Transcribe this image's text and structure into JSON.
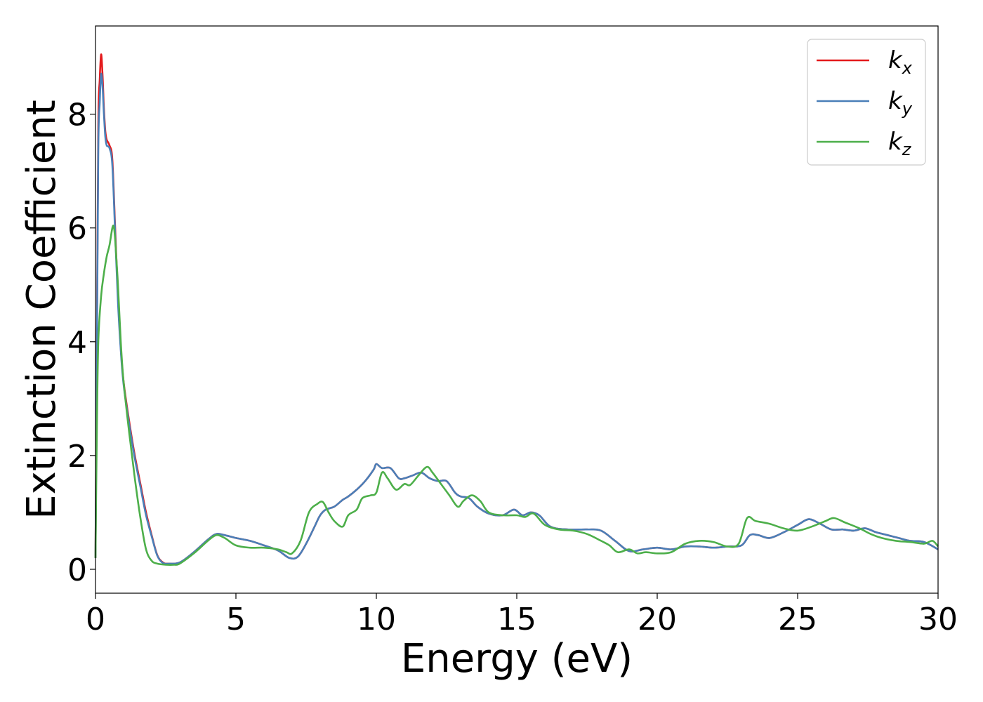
{
  "chart_data": {
    "type": "line",
    "xlabel": "Energy (eV)",
    "ylabel": "Extinction Coefficient",
    "xlim": [
      0,
      30
    ],
    "ylim": [
      -0.42,
      9.55
    ],
    "xticks": [
      0,
      5,
      10,
      15,
      20,
      25,
      30
    ],
    "yticks": [
      0,
      2,
      4,
      6,
      8
    ],
    "grid": false,
    "legend_position": "top-right",
    "series": [
      {
        "name": "k_x",
        "label_main": "k",
        "label_sub": "x",
        "color": "#e41a1c",
        "x": [
          0,
          0.05,
          0.1,
          0.15,
          0.2,
          0.25,
          0.3,
          0.35,
          0.4,
          0.5,
          0.6,
          0.7,
          0.8,
          0.9,
          1.0,
          1.2,
          1.4,
          1.6,
          1.8,
          2.0,
          2.2,
          2.4,
          2.6,
          3.0,
          3.5,
          4.0,
          4.3,
          4.6,
          5.0,
          5.5,
          6.0,
          6.5,
          6.9,
          7.2,
          7.5,
          7.8,
          8.0,
          8.2,
          8.5,
          8.8,
          9.0,
          9.3,
          9.6,
          9.9,
          10.0,
          10.2,
          10.5,
          10.8,
          11.0,
          11.3,
          11.6,
          11.9,
          12.2,
          12.5,
          12.8,
          13.0,
          13.3,
          13.6,
          14.0,
          14.5,
          14.9,
          15.2,
          15.5,
          15.8,
          16.2,
          16.8,
          17.5,
          18.0,
          18.5,
          19.0,
          19.5,
          20.0,
          20.5,
          21.0,
          21.5,
          22.0,
          22.5,
          23.0,
          23.3,
          23.6,
          24.0,
          24.5,
          25.0,
          25.4,
          25.8,
          26.2,
          26.6,
          27.0,
          27.4,
          27.8,
          28.2,
          28.6,
          29.0,
          29.5,
          30.0
        ],
        "y": [
          0.2,
          4.0,
          7.8,
          8.6,
          9.05,
          8.7,
          8.1,
          7.7,
          7.55,
          7.45,
          7.2,
          6.0,
          4.8,
          3.9,
          3.3,
          2.6,
          2.0,
          1.5,
          1.0,
          0.6,
          0.25,
          0.12,
          0.1,
          0.12,
          0.3,
          0.52,
          0.62,
          0.6,
          0.55,
          0.5,
          0.42,
          0.33,
          0.2,
          0.22,
          0.45,
          0.75,
          0.95,
          1.05,
          1.1,
          1.22,
          1.28,
          1.4,
          1.55,
          1.75,
          1.85,
          1.78,
          1.78,
          1.6,
          1.6,
          1.65,
          1.7,
          1.6,
          1.55,
          1.55,
          1.35,
          1.28,
          1.25,
          1.1,
          0.98,
          0.95,
          1.05,
          0.95,
          1.0,
          0.95,
          0.75,
          0.7,
          0.7,
          0.68,
          0.5,
          0.32,
          0.35,
          0.38,
          0.35,
          0.4,
          0.4,
          0.38,
          0.4,
          0.42,
          0.6,
          0.6,
          0.55,
          0.65,
          0.78,
          0.88,
          0.8,
          0.7,
          0.7,
          0.68,
          0.72,
          0.65,
          0.6,
          0.55,
          0.5,
          0.48,
          0.35
        ]
      },
      {
        "name": "k_y",
        "label_main": "k",
        "label_sub": "y",
        "color": "#4a7fb8",
        "x": [
          0,
          0.05,
          0.1,
          0.15,
          0.2,
          0.25,
          0.3,
          0.35,
          0.4,
          0.5,
          0.6,
          0.7,
          0.8,
          0.9,
          1.0,
          1.2,
          1.4,
          1.6,
          1.8,
          2.0,
          2.2,
          2.4,
          2.6,
          3.0,
          3.5,
          4.0,
          4.3,
          4.6,
          5.0,
          5.5,
          6.0,
          6.5,
          6.9,
          7.2,
          7.5,
          7.8,
          8.0,
          8.2,
          8.5,
          8.8,
          9.0,
          9.3,
          9.6,
          9.9,
          10.0,
          10.2,
          10.5,
          10.8,
          11.0,
          11.3,
          11.6,
          11.9,
          12.2,
          12.5,
          12.8,
          13.0,
          13.3,
          13.6,
          14.0,
          14.5,
          14.9,
          15.2,
          15.5,
          15.8,
          16.2,
          16.8,
          17.5,
          18.0,
          18.5,
          19.0,
          19.5,
          20.0,
          20.5,
          21.0,
          21.5,
          22.0,
          22.5,
          23.0,
          23.3,
          23.6,
          24.0,
          24.5,
          25.0,
          25.4,
          25.8,
          26.2,
          26.6,
          27.0,
          27.4,
          27.8,
          28.2,
          28.6,
          29.0,
          29.5,
          30.0
        ],
        "y": [
          0.2,
          3.8,
          7.4,
          8.2,
          8.7,
          8.5,
          8.0,
          7.6,
          7.45,
          7.4,
          7.1,
          5.9,
          4.7,
          3.85,
          3.25,
          2.55,
          1.95,
          1.45,
          0.95,
          0.58,
          0.24,
          0.11,
          0.1,
          0.12,
          0.3,
          0.52,
          0.62,
          0.6,
          0.55,
          0.5,
          0.42,
          0.33,
          0.2,
          0.22,
          0.45,
          0.75,
          0.95,
          1.05,
          1.1,
          1.22,
          1.28,
          1.4,
          1.55,
          1.75,
          1.85,
          1.78,
          1.78,
          1.6,
          1.6,
          1.65,
          1.7,
          1.6,
          1.55,
          1.55,
          1.35,
          1.28,
          1.25,
          1.1,
          0.98,
          0.95,
          1.05,
          0.95,
          1.0,
          0.95,
          0.75,
          0.7,
          0.7,
          0.68,
          0.5,
          0.32,
          0.35,
          0.38,
          0.35,
          0.4,
          0.4,
          0.38,
          0.4,
          0.42,
          0.6,
          0.6,
          0.55,
          0.65,
          0.78,
          0.88,
          0.8,
          0.7,
          0.7,
          0.68,
          0.72,
          0.65,
          0.6,
          0.55,
          0.5,
          0.48,
          0.35
        ]
      },
      {
        "name": "k_z",
        "label_main": "k",
        "label_sub": "z",
        "color": "#4daf4a",
        "x": [
          0,
          0.05,
          0.1,
          0.2,
          0.3,
          0.4,
          0.5,
          0.6,
          0.65,
          0.7,
          0.8,
          0.9,
          1.0,
          1.2,
          1.4,
          1.6,
          1.8,
          2.0,
          2.2,
          2.5,
          2.8,
          3.0,
          3.5,
          4.0,
          4.3,
          4.6,
          5.0,
          5.5,
          6.0,
          6.5,
          6.8,
          7.0,
          7.3,
          7.6,
          7.9,
          8.1,
          8.3,
          8.5,
          8.8,
          9.0,
          9.3,
          9.5,
          9.8,
          10.0,
          10.2,
          10.4,
          10.7,
          11.0,
          11.2,
          11.5,
          11.8,
          12.0,
          12.3,
          12.6,
          12.9,
          13.1,
          13.4,
          13.7,
          14.0,
          14.5,
          15.0,
          15.3,
          15.6,
          16.0,
          16.5,
          17.0,
          17.5,
          18.0,
          18.3,
          18.6,
          19.0,
          19.3,
          19.6,
          20.0,
          20.5,
          21.0,
          21.5,
          22.0,
          22.5,
          22.9,
          23.2,
          23.5,
          24.0,
          24.5,
          25.0,
          25.5,
          26.0,
          26.3,
          26.7,
          27.2,
          27.6,
          28.0,
          28.5,
          29.0,
          29.5,
          29.8,
          30.0
        ],
        "y": [
          0.2,
          2.5,
          4.0,
          4.8,
          5.2,
          5.5,
          5.7,
          6.0,
          6.02,
          5.8,
          5.0,
          4.0,
          3.3,
          2.4,
          1.6,
          0.9,
          0.35,
          0.15,
          0.1,
          0.08,
          0.08,
          0.1,
          0.28,
          0.5,
          0.6,
          0.55,
          0.42,
          0.38,
          0.38,
          0.35,
          0.3,
          0.28,
          0.5,
          1.0,
          1.15,
          1.18,
          1.0,
          0.85,
          0.75,
          0.95,
          1.05,
          1.25,
          1.3,
          1.35,
          1.7,
          1.6,
          1.4,
          1.5,
          1.48,
          1.65,
          1.8,
          1.7,
          1.5,
          1.3,
          1.1,
          1.2,
          1.3,
          1.2,
          1.0,
          0.95,
          0.95,
          0.92,
          0.98,
          0.78,
          0.7,
          0.68,
          0.62,
          0.5,
          0.42,
          0.3,
          0.35,
          0.28,
          0.3,
          0.28,
          0.3,
          0.45,
          0.5,
          0.48,
          0.4,
          0.45,
          0.9,
          0.85,
          0.8,
          0.72,
          0.68,
          0.75,
          0.85,
          0.9,
          0.82,
          0.72,
          0.62,
          0.55,
          0.5,
          0.48,
          0.45,
          0.5,
          0.4
        ]
      }
    ]
  }
}
